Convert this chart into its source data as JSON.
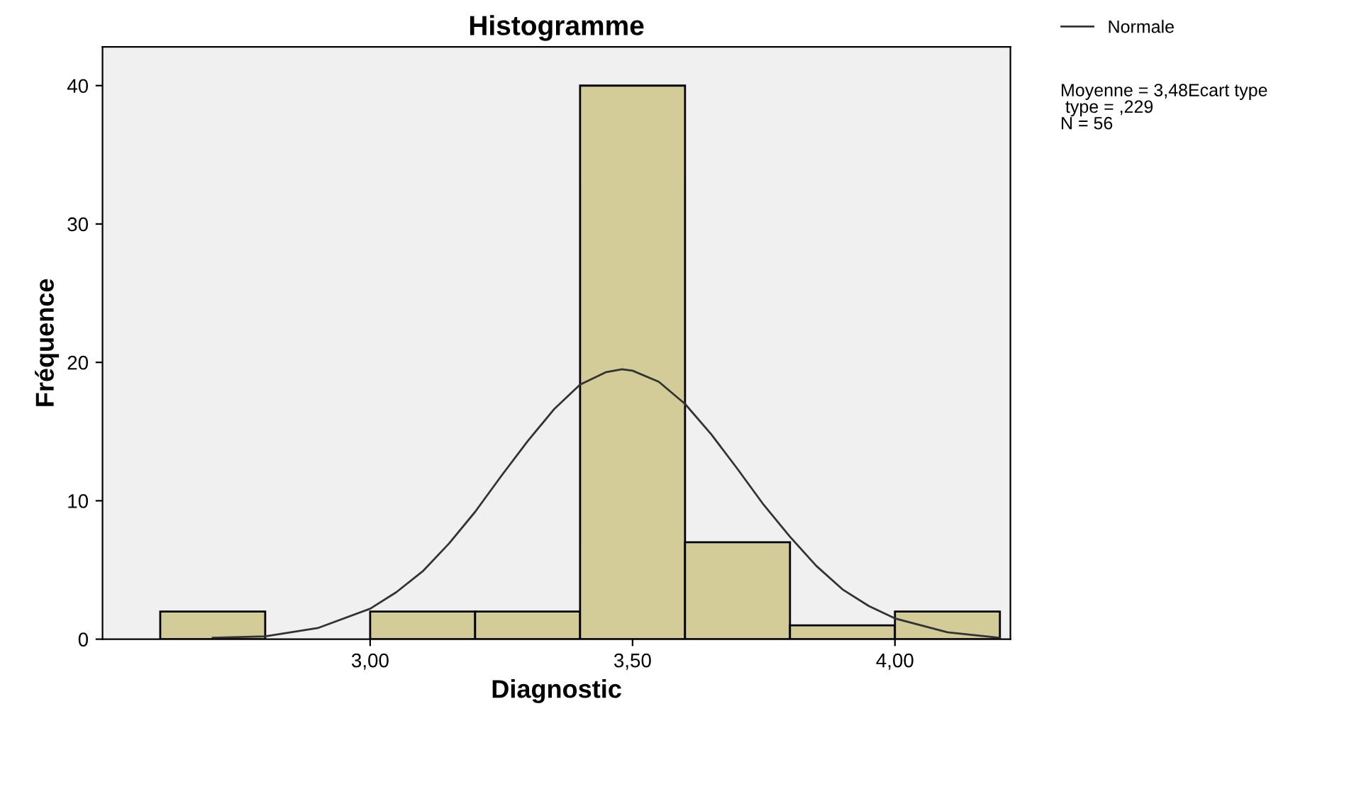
{
  "chart_data": {
    "type": "histogram",
    "title": "Histogramme",
    "xlabel": "Diagnostic",
    "ylabel": "Fréquence",
    "bins": [
      2.6,
      2.8,
      3.0,
      3.2,
      3.4,
      3.6,
      3.8,
      4.0,
      4.2
    ],
    "values": [
      2,
      0,
      2,
      2,
      40,
      7,
      1,
      2
    ],
    "color": "#d3cc98",
    "series": [
      {
        "type": "line",
        "name": "Normale",
        "color": "#333333",
        "x": [
          2.7,
          2.8,
          2.9,
          3.0,
          3.05,
          3.1,
          3.15,
          3.2,
          3.25,
          3.3,
          3.35,
          3.4,
          3.45,
          3.48,
          3.5,
          3.55,
          3.6,
          3.65,
          3.7,
          3.75,
          3.8,
          3.85,
          3.9,
          3.95,
          4.0,
          4.1,
          4.2
        ],
        "values": [
          0.1,
          0.2,
          0.8,
          2.2,
          3.4,
          4.9,
          6.9,
          9.2,
          11.8,
          14.3,
          16.6,
          18.4,
          19.3,
          19.5,
          19.4,
          18.6,
          17.0,
          14.8,
          12.3,
          9.7,
          7.4,
          5.3,
          3.6,
          2.4,
          1.5,
          0.5,
          0.1
        ]
      }
    ],
    "xlim": [
      2.49,
      4.22
    ],
    "xticks": [
      {
        "value": 3.0,
        "label": "3,00"
      },
      {
        "value": 3.5,
        "label": "3,50"
      },
      {
        "value": 4.0,
        "label": "4,00"
      }
    ],
    "ylim": [
      0,
      42.8
    ],
    "yticks": [
      0,
      10,
      20,
      30,
      40
    ],
    "grid": false,
    "legend": "top right",
    "annotations": [
      "Moyenne = 3,48Ecart type\n type = ,229\nN = 56"
    ]
  }
}
